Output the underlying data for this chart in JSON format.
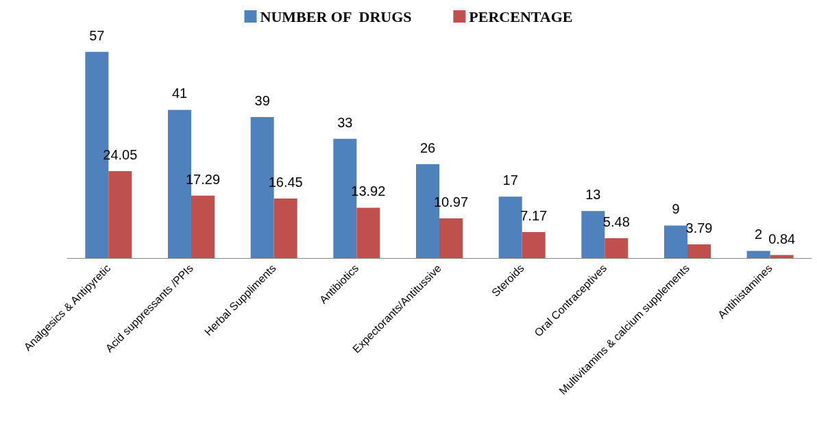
{
  "chart_data": {
    "type": "bar",
    "categories": [
      "Analgesics & Antipyretic",
      "Acid suppressants /PPIs",
      "Herbal Suppliments",
      "Antibiotics",
      "Expectorants/Antitussive",
      "Steroids",
      "Oral Contraceptives",
      "Multivitamins & calcium supplements",
      "Antihistamines"
    ],
    "series": [
      {
        "name": "NUMBER OF  DRUGS",
        "color": "#4f81bd",
        "values": [
          57,
          41,
          39,
          33,
          26,
          17,
          13,
          9,
          2
        ]
      },
      {
        "name": "PERCENTAGE",
        "color": "#c0504d",
        "values": [
          24.05,
          17.29,
          16.45,
          13.92,
          10.97,
          7.17,
          5.48,
          3.79,
          0.84
        ]
      }
    ],
    "data_labels": true,
    "legend": "top",
    "tick_labels": "x"
  }
}
